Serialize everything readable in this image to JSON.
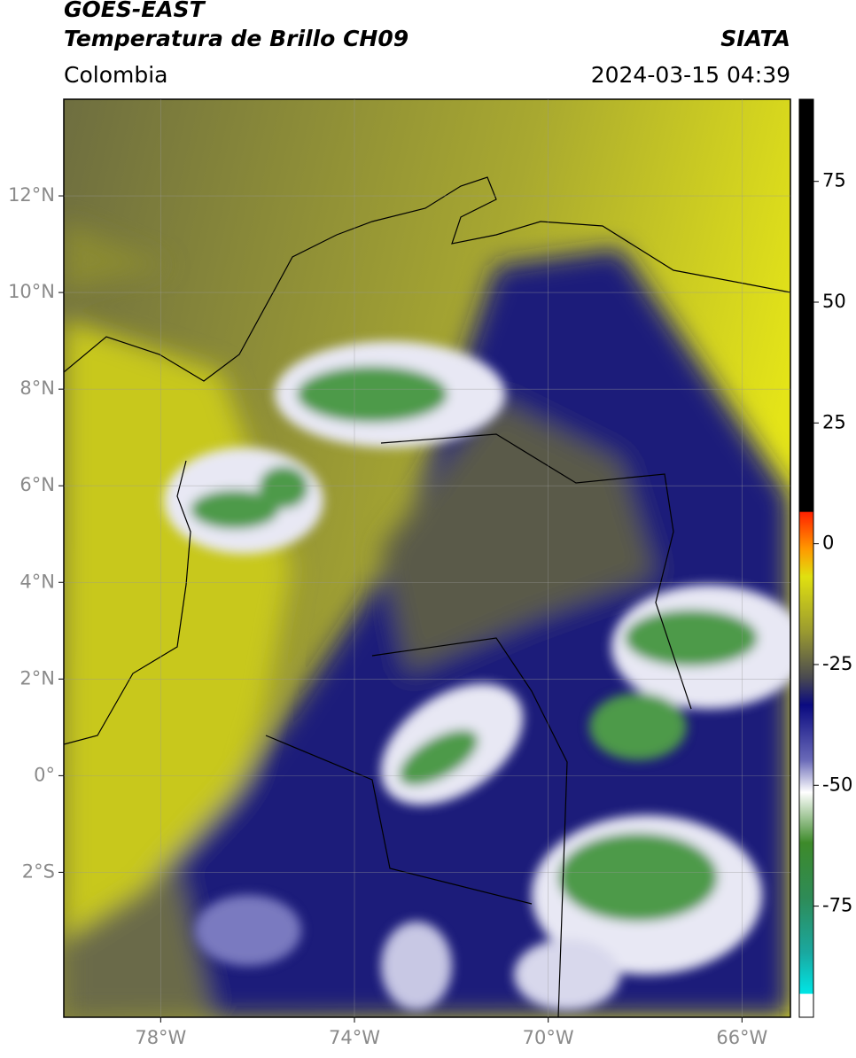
{
  "header": {
    "title": "GOES-EAST",
    "subtitle": "Temperatura de Brillo CH09",
    "region": "Colombia",
    "source": "SIATA",
    "datetime": "2024-03-15 04:39"
  },
  "map": {
    "xlim": [
      -80,
      -65
    ],
    "ylim": [
      -5,
      14
    ],
    "xticks": [
      {
        "value": -78,
        "label": "78°W"
      },
      {
        "value": -74,
        "label": "74°W"
      },
      {
        "value": -70,
        "label": "70°W"
      },
      {
        "value": -66,
        "label": "66°W"
      }
    ],
    "yticks": [
      {
        "value": 12,
        "label": "12°N"
      },
      {
        "value": 10,
        "label": "10°N"
      },
      {
        "value": 8,
        "label": "8°N"
      },
      {
        "value": 6,
        "label": "6°N"
      },
      {
        "value": 4,
        "label": "4°N"
      },
      {
        "value": 2,
        "label": "2°N"
      },
      {
        "value": 0,
        "label": "0°"
      },
      {
        "value": -2,
        "label": "2°S"
      }
    ]
  },
  "colorbar": {
    "lim": [
      -98,
      92
    ],
    "ticks": [
      75,
      50,
      25,
      0,
      -25,
      -50,
      -75
    ]
  }
}
